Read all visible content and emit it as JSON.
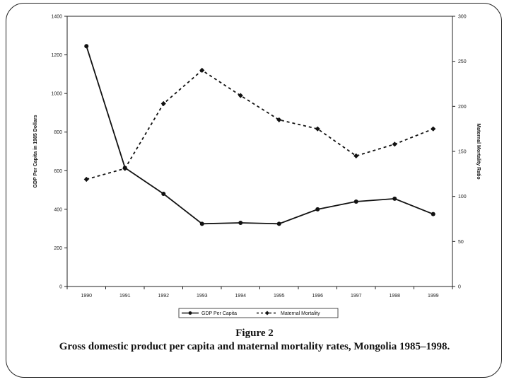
{
  "caption": {
    "figure_label": "Figure 2",
    "text": "Gross domestic product per capita and maternal mortality rates, Mongolia 1985–1998."
  },
  "chart_data": {
    "type": "line",
    "title": "",
    "categories": [
      "1990",
      "1991",
      "1992",
      "1993",
      "1994",
      "1995",
      "1996",
      "1997",
      "1998",
      "1999"
    ],
    "y_left": {
      "label": "GDP Per Capita in 1985 Dollars",
      "range": [
        0,
        1400
      ],
      "ticks": [
        "0",
        "200",
        "400",
        "600",
        "800",
        "1000",
        "1200",
        "1400"
      ]
    },
    "y_right": {
      "label": "Maternal Mortality Ratio",
      "range": [
        0,
        300
      ],
      "ticks": [
        "0",
        "50",
        "100",
        "150",
        "200",
        "250",
        "300"
      ]
    },
    "series": [
      {
        "name": "GDP Per Capita",
        "axis": "left",
        "style": "solid",
        "marker": "circle",
        "color": "#111111",
        "values": [
          1245,
          615,
          480,
          325,
          330,
          325,
          400,
          440,
          455,
          375
        ]
      },
      {
        "name": "Maternal Mortality",
        "axis": "right",
        "style": "dashed",
        "marker": "diamond",
        "color": "#111111",
        "values": [
          119,
          131,
          203,
          240,
          212,
          185,
          175,
          145,
          158,
          175
        ]
      }
    ],
    "legend_position": "bottom-center",
    "grid": false
  }
}
